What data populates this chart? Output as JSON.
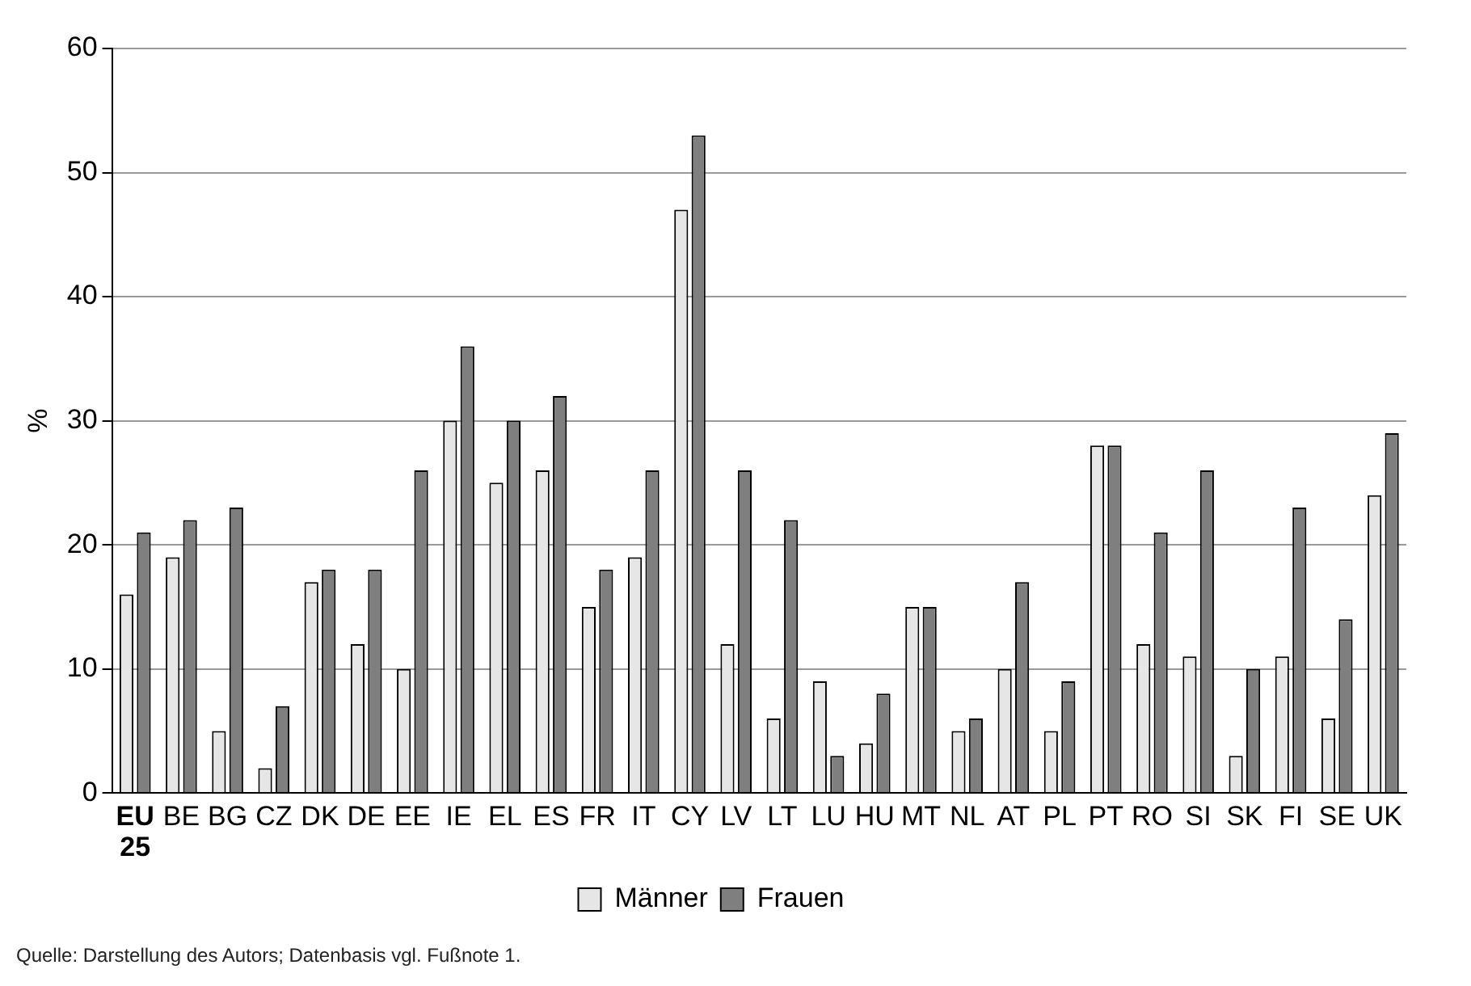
{
  "chart_data": {
    "type": "bar",
    "ylabel": "%",
    "categories": [
      "EU 25",
      "BE",
      "BG",
      "CZ",
      "DK",
      "DE",
      "EE",
      "IE",
      "EL",
      "ES",
      "FR",
      "IT",
      "CY",
      "LV",
      "LT",
      "LU",
      "HU",
      "MT",
      "NL",
      "AT",
      "PL",
      "PT",
      "RO",
      "SI",
      "SK",
      "FI",
      "SE",
      "UK"
    ],
    "series": [
      {
        "name": "Männer",
        "color": "#e6e6e6",
        "values": [
          16,
          19,
          5,
          2,
          17,
          12,
          10,
          30,
          25,
          26,
          15,
          19,
          47,
          12,
          6,
          9,
          4,
          15,
          5,
          10,
          5,
          28,
          12,
          11,
          3,
          11,
          6,
          24
        ]
      },
      {
        "name": "Frauen",
        "color": "#7f7f7f",
        "values": [
          21,
          22,
          23,
          7,
          18,
          18,
          26,
          36,
          30,
          32,
          18,
          26,
          53,
          26,
          22,
          3,
          8,
          15,
          6,
          17,
          9,
          28,
          21,
          26,
          10,
          23,
          14,
          29
        ]
      }
    ],
    "ylim": [
      0,
      60
    ],
    "yticks": [
      0,
      10,
      20,
      30,
      40,
      50,
      60
    ],
    "grid": "y",
    "legend": "bottom",
    "annotations": [
      "Quelle: Darstellung des Autors; Datenbasis vgl. Fußnote 1."
    ]
  }
}
